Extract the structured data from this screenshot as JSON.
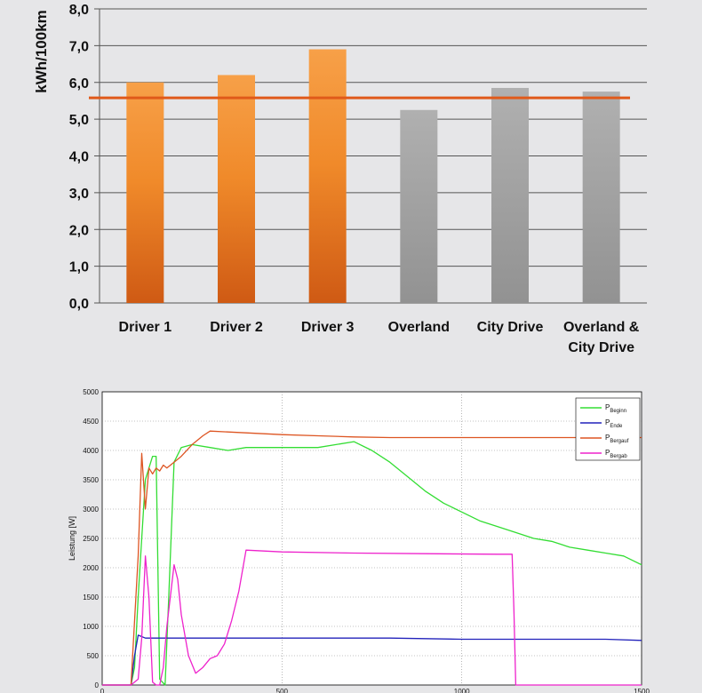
{
  "chart_data": [
    {
      "type": "bar",
      "ylabel": "kWh/100km",
      "ylim": [
        0,
        8
      ],
      "yticks": [
        "0,0",
        "1,0",
        "2,0",
        "3,0",
        "4,0",
        "5,0",
        "6,0",
        "7,0",
        "8,0"
      ],
      "grid": true,
      "categories": [
        [
          "Driver 1"
        ],
        [
          "Driver 2"
        ],
        [
          "Driver 3"
        ],
        [
          "Overland"
        ],
        [
          "City Drive"
        ],
        [
          "Overland &",
          "City Drive"
        ]
      ],
      "values": [
        6.0,
        6.2,
        6.9,
        5.25,
        5.85,
        5.75
      ],
      "bar_colors": [
        "#f08a2a",
        "#f08a2a",
        "#f08a2a",
        "#9e9e9e",
        "#9e9e9e",
        "#9e9e9e"
      ],
      "reference_line": {
        "value": 5.58,
        "color": "#e05a1a"
      }
    },
    {
      "type": "line",
      "ylabel": "Leistung [W]",
      "xlim": [
        0,
        1500
      ],
      "ylim": [
        0,
        5000
      ],
      "xticks": [
        "0",
        "500",
        "1000",
        "1500"
      ],
      "yticks": [
        "0",
        "500",
        "1000",
        "1500",
        "2000",
        "2500",
        "3000",
        "3500",
        "4000",
        "4500",
        "5000"
      ],
      "grid": true,
      "legend_position": "top-right",
      "series": [
        {
          "name": "P",
          "subscript": "Beginn",
          "color": "#33dd33",
          "x": [
            0,
            80,
            90,
            100,
            110,
            120,
            130,
            140,
            150,
            160,
            175,
            185,
            200,
            220,
            250,
            300,
            350,
            400,
            500,
            600,
            700,
            750,
            800,
            850,
            900,
            950,
            1000,
            1050,
            1100,
            1150,
            1200,
            1250,
            1300,
            1350,
            1400,
            1450,
            1500
          ],
          "y": [
            0,
            0,
            300,
            1500,
            2500,
            3500,
            3700,
            3900,
            3900,
            100,
            0,
            1500,
            3800,
            4050,
            4100,
            4050,
            4000,
            4050,
            4050,
            4050,
            4150,
            4000,
            3800,
            3550,
            3300,
            3100,
            2950,
            2800,
            2700,
            2600,
            2500,
            2450,
            2350,
            2300,
            2250,
            2200,
            2050
          ]
        },
        {
          "name": "P",
          "subscript": "Ende",
          "color": "#2222bb",
          "x": [
            0,
            80,
            90,
            100,
            120,
            200,
            400,
            600,
            800,
            1000,
            1200,
            1400,
            1500
          ],
          "y": [
            0,
            0,
            500,
            850,
            800,
            800,
            800,
            800,
            800,
            780,
            780,
            780,
            760
          ]
        },
        {
          "name": "P",
          "subscript": "Bergauf",
          "color": "#dd5522",
          "x": [
            0,
            80,
            100,
            110,
            120,
            130,
            140,
            150,
            160,
            170,
            180,
            200,
            220,
            250,
            280,
            300,
            400,
            500,
            600,
            700,
            800,
            1000,
            1200,
            1500
          ],
          "y": [
            0,
            0,
            2200,
            3950,
            3000,
            3700,
            3600,
            3700,
            3650,
            3750,
            3700,
            3800,
            3900,
            4100,
            4250,
            4330,
            4300,
            4270,
            4250,
            4230,
            4220,
            4220,
            4220,
            4220
          ]
        },
        {
          "name": "P",
          "subscript": "Bergab",
          "color": "#ee22cc",
          "x": [
            0,
            80,
            100,
            110,
            120,
            130,
            140,
            150,
            160,
            170,
            180,
            200,
            210,
            220,
            240,
            260,
            280,
            300,
            320,
            340,
            360,
            380,
            400,
            500,
            700,
            900,
            1100,
            1140,
            1145,
            1150,
            1500
          ],
          "y": [
            0,
            0,
            100,
            800,
            2200,
            1500,
            50,
            0,
            0,
            300,
            1000,
            2050,
            1800,
            1200,
            500,
            200,
            300,
            450,
            500,
            700,
            1100,
            1600,
            2300,
            2270,
            2250,
            2240,
            2230,
            2230,
            1300,
            0,
            0
          ]
        }
      ]
    }
  ]
}
